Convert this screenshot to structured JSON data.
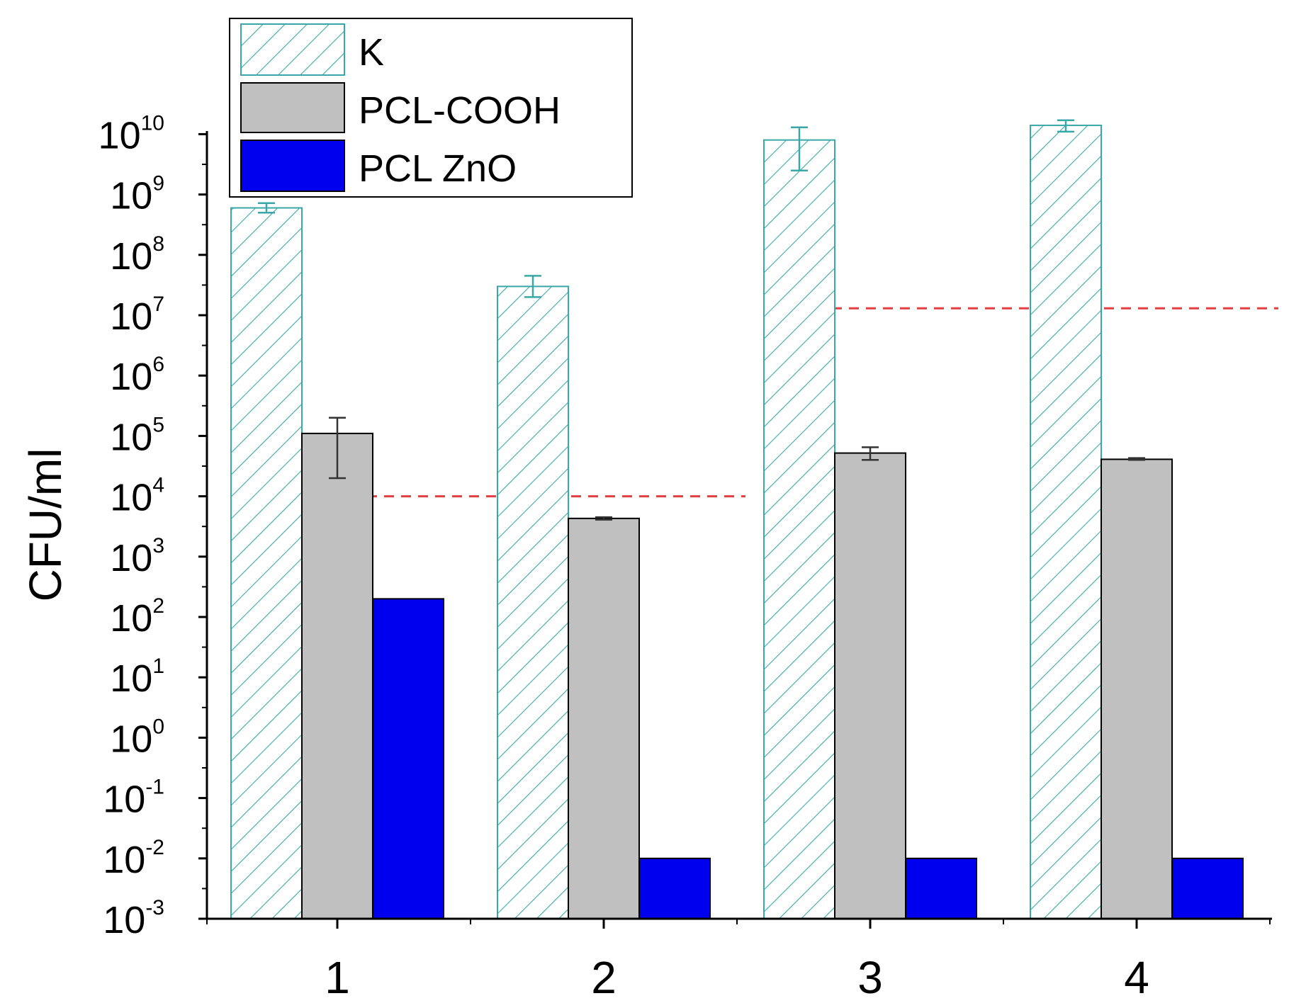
{
  "chart_data": {
    "type": "bar",
    "title": "",
    "xlabel": "",
    "ylabel": "CFU/ml",
    "yscale": "log",
    "ylim": [
      0.001,
      10000000000
    ],
    "categories": [
      "1",
      "2",
      "3",
      "4"
    ],
    "ytick_base": "10",
    "ytick_exponents": [
      "-3",
      "-2",
      "-1",
      "0",
      "1",
      "2",
      "3",
      "4",
      "5",
      "6",
      "7",
      "8",
      "9",
      "10"
    ],
    "series": [
      {
        "name": "K",
        "style": "hatched",
        "color": "#3aa8a8",
        "values": [
          600000000,
          30000000,
          8000000000,
          14000000000
        ],
        "errors_low": [
          500000000,
          20000000,
          2500000000,
          11000000000
        ],
        "errors_high": [
          720000000,
          45000000,
          13000000000,
          17000000000
        ]
      },
      {
        "name": "PCL-COOH",
        "style": "solid",
        "color": "#c0c0c0",
        "values": [
          110000,
          4300,
          52000,
          41000
        ],
        "errors_low": [
          20000,
          4100,
          40000,
          40000
        ],
        "errors_high": [
          200000,
          4500,
          65000,
          43000
        ]
      },
      {
        "name": "PCL ZnO",
        "style": "solid",
        "color": "#0000ee",
        "values": [
          200,
          0.01,
          0.01,
          0.01
        ],
        "errors_low": [
          200,
          0.01,
          0.01,
          0.01
        ],
        "errors_high": [
          200,
          0.01,
          0.01,
          0.01
        ]
      }
    ],
    "reference_lines": [
      {
        "value": 10000,
        "from_category": "1",
        "to_category": "2",
        "color": "#e04040",
        "style": "dashed"
      },
      {
        "value": 13000000,
        "from_category": "3",
        "to_category": "4",
        "color": "#e04040",
        "style": "dashed"
      }
    ],
    "legend": {
      "position": "top-left",
      "entries": [
        "K",
        "PCL-COOH",
        "PCL ZnO"
      ]
    }
  }
}
